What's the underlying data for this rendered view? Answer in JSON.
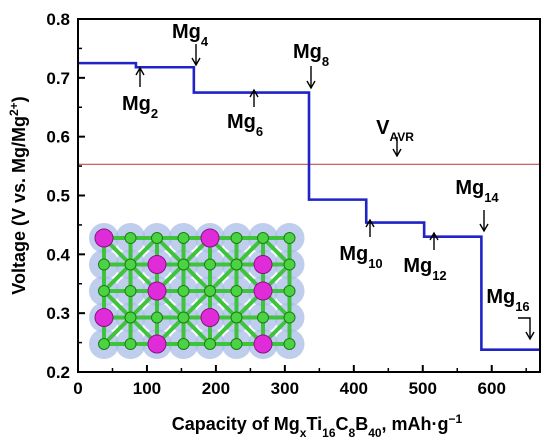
{
  "chart_data": {
    "type": "line",
    "xlabel_parts": {
      "a": "Capacity of Mg",
      "x_sub": "x",
      "b": "Ti",
      "ti_sub": "16",
      "c": "C",
      "c_sub": "8",
      "d": "B",
      "b_sub": "40",
      "e": ", mAh·g",
      "e_sup": "−1"
    },
    "ylabel_parts": {
      "a": "Voltage (V vs. Mg/Mg",
      "sup": "2+",
      "b": ")"
    },
    "xlim": [
      0,
      670
    ],
    "ylim": [
      0.2,
      0.8
    ],
    "x_ticks": [
      0,
      100,
      200,
      300,
      400,
      500,
      600
    ],
    "y_ticks": [
      0.2,
      0.3,
      0.4,
      0.5,
      0.6,
      0.7,
      0.8
    ],
    "y_tick_labels": [
      "0.2",
      "0.3",
      "0.4",
      "0.5",
      "0.6",
      "0.7",
      "0.8"
    ],
    "line_color": "#1f23c8",
    "avr_line_color": "#c0504d",
    "steps": [
      {
        "x0": 0,
        "x1": 84,
        "y": 0.725
      },
      {
        "x0": 84,
        "x1": 168,
        "y": 0.718
      },
      {
        "x0": 168,
        "x1": 335,
        "y": 0.675
      },
      {
        "x0": 335,
        "x1": 418,
        "y": 0.493
      },
      {
        "x0": 418,
        "x1": 502,
        "y": 0.454
      },
      {
        "x0": 502,
        "x1": 585,
        "y": 0.43
      },
      {
        "x0": 585,
        "x1": 670,
        "y": 0.238
      }
    ],
    "v_avr": 0.553,
    "annotations": [
      {
        "id": "mg2",
        "base": "Mg",
        "sub": "2",
        "x": 84,
        "y": 0.718,
        "dir": "up"
      },
      {
        "id": "mg4",
        "base": "Mg",
        "sub": "4",
        "x": 168,
        "y": 0.718,
        "dir": "down"
      },
      {
        "id": "mg6",
        "base": "Mg",
        "sub": "6",
        "x": 252,
        "y": 0.675,
        "dir": "up"
      },
      {
        "id": "mg8",
        "base": "Mg",
        "sub": "8",
        "x": 335,
        "y": 0.675,
        "dir": "down"
      },
      {
        "id": "mg10",
        "base": "Mg",
        "sub": "10",
        "x": 418,
        "y": 0.454,
        "dir": "up"
      },
      {
        "id": "mg12",
        "base": "Mg",
        "sub": "12",
        "x": 502,
        "y": 0.43,
        "dir": "up"
      },
      {
        "id": "mg14",
        "base": "Mg",
        "sub": "14",
        "x": 585,
        "y": 0.43,
        "dir": "down"
      },
      {
        "id": "mg16",
        "base": "Mg",
        "sub": "16",
        "x": 670,
        "y": 0.238,
        "dir": "corner"
      }
    ],
    "avr_label": {
      "base": "V",
      "sub": "AVR"
    }
  }
}
